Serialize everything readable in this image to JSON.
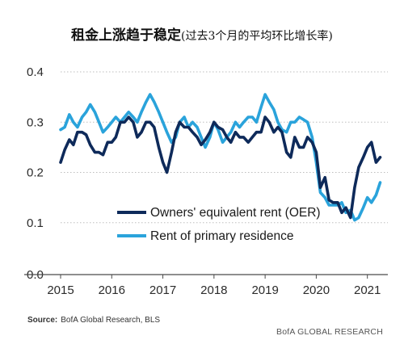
{
  "chart_data": {
    "type": "line",
    "title": "租金上涨趋于稳定",
    "subtitle": "(过去3个月的平均环比增长率)",
    "ylim": [
      0.0,
      0.4
    ],
    "yticks": [
      0.0,
      0.1,
      0.2,
      0.3,
      0.4
    ],
    "ytick_labels": [
      "0.0",
      "0.1",
      "0.2",
      "0.3",
      "0.4"
    ],
    "xlim": [
      2015.0,
      2021.4
    ],
    "xticks": [
      2015,
      2016,
      2017,
      2018,
      2019,
      2020,
      2021
    ],
    "xtick_labels": [
      "2015",
      "2016",
      "2017",
      "2018",
      "2019",
      "2020",
      "2021"
    ],
    "grid": "horizontal",
    "legend": "center-right",
    "series": [
      {
        "name": "Owners' equivalent rent (OER)",
        "color": "#0e2a5a",
        "x": [
          2015.0,
          2015.08,
          2015.17,
          2015.25,
          2015.33,
          2015.42,
          2015.5,
          2015.58,
          2015.67,
          2015.75,
          2015.83,
          2015.92,
          2016.0,
          2016.08,
          2016.17,
          2016.25,
          2016.33,
          2016.42,
          2016.5,
          2016.58,
          2016.67,
          2016.75,
          2016.83,
          2016.92,
          2017.0,
          2017.08,
          2017.17,
          2017.25,
          2017.33,
          2017.42,
          2017.5,
          2017.58,
          2017.67,
          2017.75,
          2017.83,
          2017.92,
          2018.0,
          2018.08,
          2018.17,
          2018.25,
          2018.33,
          2018.42,
          2018.5,
          2018.58,
          2018.67,
          2018.75,
          2018.83,
          2018.92,
          2019.0,
          2019.08,
          2019.17,
          2019.25,
          2019.33,
          2019.42,
          2019.5,
          2019.58,
          2019.67,
          2019.75,
          2019.83,
          2019.92,
          2020.0,
          2020.08,
          2020.17,
          2020.25,
          2020.33,
          2020.42,
          2020.5,
          2020.58,
          2020.67,
          2020.75,
          2020.83,
          2020.92,
          2021.0,
          2021.08,
          2021.17,
          2021.25
        ],
        "values": [
          0.22,
          0.245,
          0.265,
          0.255,
          0.28,
          0.28,
          0.275,
          0.255,
          0.24,
          0.24,
          0.235,
          0.26,
          0.26,
          0.27,
          0.3,
          0.3,
          0.31,
          0.3,
          0.27,
          0.28,
          0.3,
          0.3,
          0.29,
          0.25,
          0.22,
          0.2,
          0.24,
          0.28,
          0.3,
          0.29,
          0.29,
          0.28,
          0.27,
          0.255,
          0.265,
          0.28,
          0.3,
          0.29,
          0.285,
          0.27,
          0.26,
          0.28,
          0.27,
          0.27,
          0.26,
          0.27,
          0.28,
          0.28,
          0.31,
          0.3,
          0.28,
          0.29,
          0.28,
          0.24,
          0.23,
          0.27,
          0.25,
          0.25,
          0.27,
          0.26,
          0.24,
          0.17,
          0.19,
          0.145,
          0.14,
          0.14,
          0.12,
          0.13,
          0.11,
          0.17,
          0.21,
          0.23,
          0.25,
          0.26,
          0.22,
          0.23
        ]
      },
      {
        "name": "Rent of primary residence",
        "color": "#2aa3db",
        "x": [
          2015.0,
          2015.08,
          2015.17,
          2015.25,
          2015.33,
          2015.42,
          2015.5,
          2015.58,
          2015.67,
          2015.75,
          2015.83,
          2015.92,
          2016.0,
          2016.08,
          2016.17,
          2016.25,
          2016.33,
          2016.42,
          2016.5,
          2016.58,
          2016.67,
          2016.75,
          2016.83,
          2016.92,
          2017.0,
          2017.08,
          2017.17,
          2017.25,
          2017.33,
          2017.42,
          2017.5,
          2017.58,
          2017.67,
          2017.75,
          2017.83,
          2017.92,
          2018.0,
          2018.08,
          2018.17,
          2018.25,
          2018.33,
          2018.42,
          2018.5,
          2018.58,
          2018.67,
          2018.75,
          2018.83,
          2018.92,
          2019.0,
          2019.08,
          2019.17,
          2019.25,
          2019.33,
          2019.42,
          2019.5,
          2019.58,
          2019.67,
          2019.75,
          2019.83,
          2019.92,
          2020.0,
          2020.08,
          2020.17,
          2020.25,
          2020.33,
          2020.42,
          2020.5,
          2020.58,
          2020.67,
          2020.75,
          2020.83,
          2020.92,
          2021.0,
          2021.08,
          2021.17,
          2021.25
        ],
        "values": [
          0.285,
          0.29,
          0.315,
          0.3,
          0.29,
          0.31,
          0.32,
          0.335,
          0.32,
          0.3,
          0.28,
          0.29,
          0.3,
          0.31,
          0.3,
          0.31,
          0.32,
          0.31,
          0.3,
          0.32,
          0.34,
          0.355,
          0.34,
          0.32,
          0.3,
          0.28,
          0.26,
          0.27,
          0.3,
          0.31,
          0.29,
          0.3,
          0.29,
          0.27,
          0.25,
          0.27,
          0.3,
          0.285,
          0.26,
          0.27,
          0.28,
          0.3,
          0.29,
          0.3,
          0.31,
          0.31,
          0.3,
          0.33,
          0.355,
          0.34,
          0.325,
          0.3,
          0.285,
          0.28,
          0.3,
          0.3,
          0.31,
          0.305,
          0.3,
          0.27,
          0.22,
          0.16,
          0.15,
          0.135,
          0.135,
          0.135,
          0.14,
          0.12,
          0.125,
          0.105,
          0.11,
          0.13,
          0.15,
          0.14,
          0.155,
          0.18
        ]
      }
    ],
    "source_label": "Source:",
    "source_text": "BofA Global Research, BLS",
    "credit": "BofA GLOBAL RESEARCH"
  }
}
